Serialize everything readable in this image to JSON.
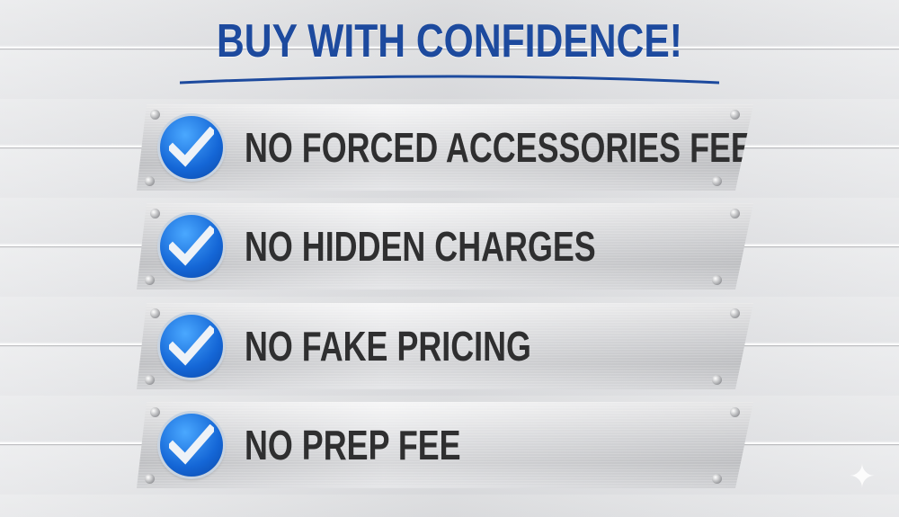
{
  "title": "BUY WITH CONFIDENCE!",
  "colors": {
    "title": "#1d4a9e",
    "check_badge": "#1466d6",
    "plate_text": "#2f2f30"
  },
  "items": [
    {
      "label": "NO FORCED ACCESSORIES FEES",
      "icon": "checkmark-icon"
    },
    {
      "label": "NO HIDDEN CHARGES",
      "icon": "checkmark-icon"
    },
    {
      "label": "NO FAKE PRICING",
      "icon": "checkmark-icon"
    },
    {
      "label": "NO PREP FEE",
      "icon": "checkmark-icon"
    }
  ],
  "watermark_icon": "sparkle-icon"
}
